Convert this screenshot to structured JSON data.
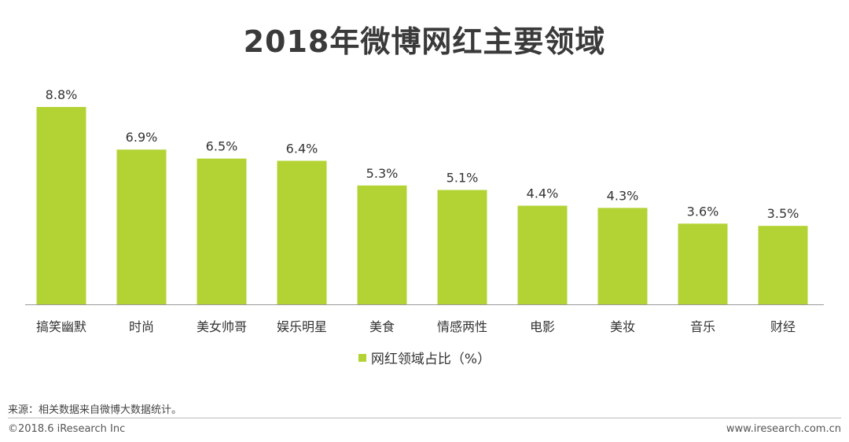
{
  "colors": {
    "bar": "#b3d335",
    "axis": "#999999",
    "text": "#333333"
  },
  "footer": {
    "source": "来源：相关数据来自微博大数据统计。",
    "copyright": "©2018.6 iResearch Inc",
    "website": "www.iresearch.com.cn"
  },
  "chart_data": {
    "type": "bar",
    "title": "2018年微博网红主要领域",
    "categories": [
      "搞笑幽默",
      "时尚",
      "美女帅哥",
      "娱乐明星",
      "美食",
      "情感两性",
      "电影",
      "美妆",
      "音乐",
      "财经"
    ],
    "series": [
      {
        "name": "网红领域占比（%）",
        "values": [
          8.8,
          6.9,
          6.5,
          6.4,
          5.3,
          5.1,
          4.4,
          4.3,
          3.6,
          3.5
        ],
        "labels": [
          "8.8%",
          "6.9%",
          "6.5%",
          "6.4%",
          "5.3%",
          "5.1%",
          "4.4%",
          "4.3%",
          "3.6%",
          "3.5%"
        ]
      }
    ],
    "xlabel": "",
    "ylabel": "",
    "ylim": [
      0,
      8.8
    ],
    "grid": false,
    "legend": "bottom-center"
  }
}
